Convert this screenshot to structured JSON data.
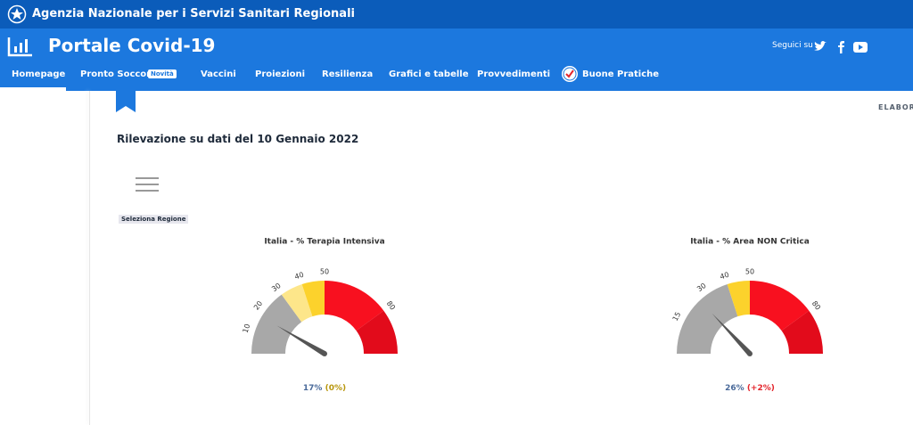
{
  "header": {
    "agency": "Agenzia Nazionale per i Servizi Sanitari Regionali",
    "title": "Portale Covid-19",
    "follow": "Seguici su"
  },
  "nav": [
    "Homepage",
    "Pronto Soccorso",
    "Vaccini",
    "Proiezioni",
    "Resilienza",
    "Grafici e tabelle",
    "Provvedimenti",
    "Buone Pratiche"
  ],
  "nav_badge": "Novità",
  "content": {
    "elaboration": "ELABORAZ",
    "heading": "Rilevazione su dati del 10 Gennaio 2022",
    "region_button": "Seleziona Regione"
  },
  "gauges": [
    {
      "title": "Italia - % Terapia Intensiva",
      "value": 17,
      "value_label": "17%",
      "delta_label": "(0%)",
      "delta_color": "#b8960c",
      "lim": [
        0,
        100
      ],
      "ticks": [
        10,
        20,
        30,
        40,
        50,
        80
      ],
      "bands": [
        {
          "from": 0,
          "to": 30,
          "color": "#a8a8a8"
        },
        {
          "from": 30,
          "to": 40,
          "color": "#fde68a"
        },
        {
          "from": 40,
          "to": 50,
          "color": "#fcd22c"
        },
        {
          "from": 50,
          "to": 80,
          "color": "#f8101f"
        },
        {
          "from": 80,
          "to": 100,
          "color": "#e20b1b"
        }
      ]
    },
    {
      "title": "Italia - % Area NON Critica",
      "value": 26,
      "value_label": "26%",
      "delta_label": "(+2%)",
      "delta_color": "#e4252c",
      "lim": [
        0,
        100
      ],
      "ticks": [
        15,
        30,
        40,
        50,
        80
      ],
      "bands": [
        {
          "from": 0,
          "to": 40,
          "color": "#a8a8a8"
        },
        {
          "from": 40,
          "to": 50,
          "color": "#fcd22c"
        },
        {
          "from": 50,
          "to": 80,
          "color": "#f8101f"
        },
        {
          "from": 80,
          "to": 100,
          "color": "#e20b1b"
        }
      ]
    }
  ]
}
